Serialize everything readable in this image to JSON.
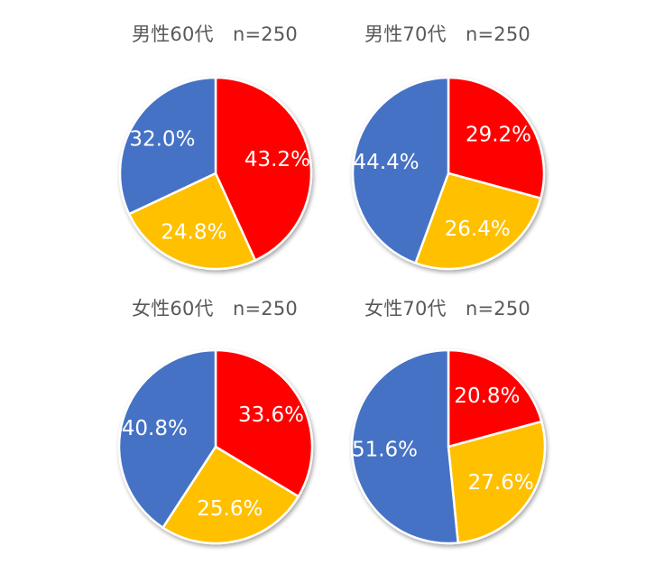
{
  "chart_data": [
    {
      "type": "pie",
      "title": "男性60代　n=250",
      "slices": [
        {
          "label": "43.2%",
          "value": 43.2,
          "color": "#FF0000"
        },
        {
          "label": "24.8%",
          "value": 24.8,
          "color": "#FFC000"
        },
        {
          "label": "32.0%",
          "value": 32.0,
          "color": "#4472C4"
        }
      ]
    },
    {
      "type": "pie",
      "title": "男性70代　n=250",
      "slices": [
        {
          "label": "29.2%",
          "value": 29.2,
          "color": "#FF0000"
        },
        {
          "label": "26.4%",
          "value": 26.4,
          "color": "#FFC000"
        },
        {
          "label": "44.4%",
          "value": 44.4,
          "color": "#4472C4"
        }
      ]
    },
    {
      "type": "pie",
      "title": "女性60代　n=250",
      "slices": [
        {
          "label": "33.6%",
          "value": 33.6,
          "color": "#FF0000"
        },
        {
          "label": "25.6%",
          "value": 25.6,
          "color": "#FFC000"
        },
        {
          "label": "40.8%",
          "value": 40.8,
          "color": "#4472C4"
        }
      ]
    },
    {
      "type": "pie",
      "title": "女性70代　n=250",
      "slices": [
        {
          "label": "20.8%",
          "value": 20.8,
          "color": "#FF0000"
        },
        {
          "label": "27.6%",
          "value": 27.6,
          "color": "#FFC000"
        },
        {
          "label": "51.6%",
          "value": 51.6,
          "color": "#4472C4"
        }
      ]
    }
  ]
}
